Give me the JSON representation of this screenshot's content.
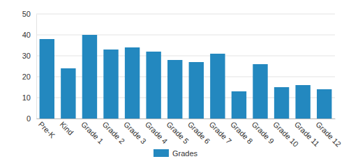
{
  "chart_data": {
    "type": "bar",
    "categories": [
      "Pre-K",
      "Kind",
      "Grade 1",
      "Grade 2",
      "Grade 3",
      "Grade 4",
      "Grade 5",
      "Grade 6",
      "Grade 7",
      "Grade 8",
      "Grade 9",
      "Grade 10",
      "Grade 11",
      "Grade 12"
    ],
    "series": [
      {
        "name": "Grades",
        "color": "#2388bf",
        "values": [
          38,
          24,
          40,
          33,
          34,
          32,
          28,
          27,
          31,
          13,
          26,
          15,
          16,
          14
        ]
      }
    ],
    "ylim": [
      0,
      50
    ],
    "yticks": [
      0,
      10,
      20,
      30,
      40,
      50
    ],
    "grid": true,
    "legend": "bottom"
  }
}
